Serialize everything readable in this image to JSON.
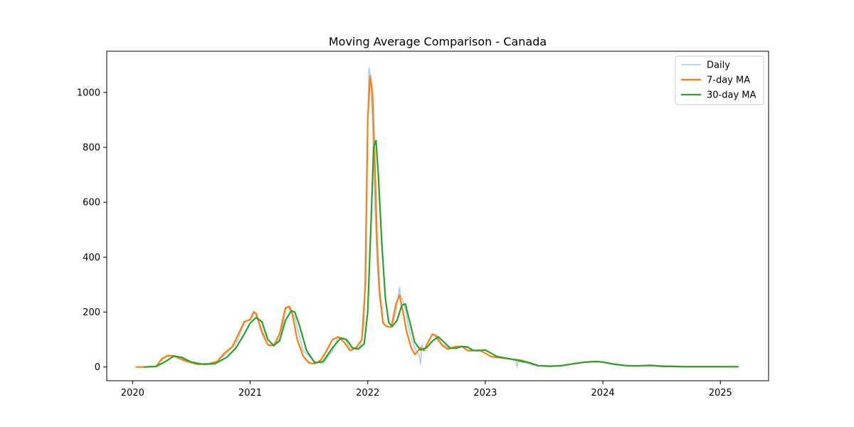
{
  "chart_data": {
    "type": "line",
    "title": "Moving Average Comparison - Canada",
    "xlabel": "",
    "ylabel": "",
    "xlim": [
      2019.78,
      2025.41
    ],
    "ylim": [
      -50,
      1150
    ],
    "x_ticks": [
      2020,
      2021,
      2022,
      2023,
      2024,
      2025
    ],
    "x_tick_labels": [
      "2020",
      "2021",
      "2022",
      "2023",
      "2024",
      "2025"
    ],
    "y_ticks": [
      0,
      200,
      400,
      600,
      800,
      1000
    ],
    "y_tick_labels": [
      "0",
      "200",
      "400",
      "600",
      "800",
      "1000"
    ],
    "grid": false,
    "legend_position": "top-right",
    "series": [
      {
        "name": "Daily",
        "color": "#a6cee3",
        "x": [
          2020.03,
          2020.2,
          2020.27,
          2020.35,
          2020.45,
          2020.55,
          2020.7,
          2020.8,
          2020.88,
          2020.95,
          2021.0,
          2021.03,
          2021.06,
          2021.1,
          2021.15,
          2021.2,
          2021.26,
          2021.3,
          2021.34,
          2021.38,
          2021.45,
          2021.55,
          2021.62,
          2021.7,
          2021.75,
          2021.8,
          2021.85,
          2021.9,
          2021.94,
          2021.97,
          2021.99,
          2022.01,
          2022.02,
          2022.04,
          2022.06,
          2022.08,
          2022.1,
          2022.13,
          2022.16,
          2022.2,
          2022.24,
          2022.27,
          2022.28,
          2022.3,
          2022.32,
          2022.36,
          2022.4,
          2022.44,
          2022.45,
          2022.46,
          2022.48,
          2022.52,
          2022.56,
          2022.6,
          2022.65,
          2022.7,
          2022.78,
          2022.85,
          2022.9,
          2022.95,
          2023.0,
          2023.05,
          2023.1,
          2023.2,
          2023.26,
          2023.27,
          2023.28,
          2023.35,
          2023.4,
          2023.45,
          2023.55,
          2023.65,
          2023.75,
          2023.85,
          2023.95,
          2024.0,
          2024.1,
          2024.2,
          2024.3,
          2024.4,
          2024.5,
          2024.6,
          2024.7,
          2024.8,
          2024.9,
          2025.0,
          2025.1,
          2025.15
        ],
        "y": [
          0,
          2,
          35,
          42,
          25,
          10,
          15,
          50,
          85,
          160,
          175,
          205,
          180,
          120,
          80,
          78,
          110,
          210,
          220,
          180,
          60,
          20,
          12,
          60,
          110,
          105,
          70,
          65,
          80,
          160,
          700,
          1090,
          1070,
          900,
          600,
          380,
          250,
          160,
          150,
          145,
          200,
          290,
          260,
          240,
          210,
          120,
          70,
          40,
          10,
          80,
          60,
          100,
          120,
          95,
          80,
          65,
          75,
          75,
          60,
          60,
          62,
          50,
          38,
          30,
          25,
          0,
          20,
          15,
          8,
          3,
          3,
          6,
          12,
          18,
          20,
          18,
          12,
          6,
          4,
          3,
          5,
          2,
          1,
          1,
          1,
          1,
          1,
          1
        ]
      },
      {
        "name": "7-day MA",
        "color": "#ff7f0e",
        "x": [
          2020.03,
          2020.1,
          2020.2,
          2020.25,
          2020.3,
          2020.35,
          2020.45,
          2020.55,
          2020.65,
          2020.72,
          2020.78,
          2020.85,
          2020.9,
          2020.95,
          2021.0,
          2021.03,
          2021.05,
          2021.1,
          2021.15,
          2021.2,
          2021.25,
          2021.3,
          2021.33,
          2021.36,
          2021.4,
          2021.45,
          2021.5,
          2021.55,
          2021.6,
          2021.65,
          2021.7,
          2021.75,
          2021.8,
          2021.85,
          2021.9,
          2021.95,
          2021.98,
          2022.0,
          2022.02,
          2022.04,
          2022.06,
          2022.08,
          2022.1,
          2022.13,
          2022.16,
          2022.2,
          2022.24,
          2022.27,
          2022.3,
          2022.33,
          2022.37,
          2022.4,
          2022.45,
          2022.48,
          2022.5,
          2022.52,
          2022.55,
          2022.58,
          2022.6,
          2022.63,
          2022.68,
          2022.75,
          2022.8,
          2022.85,
          2022.9,
          2022.95,
          2023.0,
          2023.05,
          2023.1,
          2023.2,
          2023.3,
          2023.38,
          2023.45,
          2023.55,
          2023.65,
          2023.75,
          2023.85,
          2023.95,
          2024.0,
          2024.1,
          2024.2,
          2024.3,
          2024.4,
          2024.5,
          2024.6,
          2024.7,
          2024.8,
          2024.9,
          2025.0,
          2025.15
        ],
        "y": [
          0,
          0,
          2,
          30,
          42,
          40,
          22,
          10,
          12,
          20,
          50,
          75,
          120,
          165,
          172,
          200,
          195,
          130,
          80,
          78,
          120,
          215,
          220,
          190,
          100,
          40,
          15,
          12,
          25,
          60,
          100,
          110,
          90,
          60,
          70,
          100,
          300,
          900,
          1060,
          1000,
          750,
          450,
          280,
          160,
          148,
          145,
          230,
          262,
          200,
          130,
          70,
          45,
          70,
          60,
          80,
          95,
          120,
          115,
          100,
          80,
          65,
          75,
          75,
          60,
          60,
          62,
          50,
          38,
          35,
          30,
          25,
          15,
          5,
          3,
          5,
          12,
          18,
          20,
          18,
          10,
          5,
          4,
          6,
          3,
          2,
          1,
          1,
          1,
          1,
          1
        ]
      },
      {
        "name": "30-day MA",
        "color": "#2ca02c",
        "x": [
          2020.1,
          2020.2,
          2020.28,
          2020.35,
          2020.42,
          2020.5,
          2020.6,
          2020.7,
          2020.8,
          2020.88,
          2020.95,
          2021.0,
          2021.05,
          2021.1,
          2021.15,
          2021.2,
          2021.25,
          2021.3,
          2021.35,
          2021.38,
          2021.42,
          2021.48,
          2021.55,
          2021.62,
          2021.7,
          2021.77,
          2021.82,
          2021.87,
          2021.92,
          2021.97,
          2022.0,
          2022.03,
          2022.05,
          2022.07,
          2022.09,
          2022.12,
          2022.15,
          2022.18,
          2022.21,
          2022.25,
          2022.29,
          2022.32,
          2022.36,
          2022.4,
          2022.45,
          2022.5,
          2022.55,
          2022.6,
          2022.65,
          2022.7,
          2022.75,
          2022.8,
          2022.85,
          2022.9,
          2022.95,
          2023.0,
          2023.05,
          2023.1,
          2023.2,
          2023.3,
          2023.38,
          2023.45,
          2023.55,
          2023.65,
          2023.75,
          2023.85,
          2023.95,
          2024.0,
          2024.1,
          2024.2,
          2024.3,
          2024.4,
          2024.5,
          2024.6,
          2024.7,
          2024.8,
          2024.9,
          2025.0,
          2025.15
        ],
        "y": [
          0,
          2,
          20,
          40,
          35,
          18,
          10,
          12,
          35,
          70,
          120,
          160,
          180,
          165,
          100,
          78,
          95,
          170,
          205,
          200,
          150,
          60,
          15,
          20,
          70,
          105,
          100,
          70,
          65,
          85,
          200,
          550,
          800,
          825,
          700,
          450,
          250,
          160,
          148,
          170,
          225,
          230,
          160,
          90,
          62,
          70,
          95,
          110,
          90,
          70,
          68,
          75,
          72,
          60,
          60,
          62,
          50,
          38,
          30,
          22,
          15,
          5,
          3,
          5,
          12,
          18,
          20,
          18,
          10,
          5,
          4,
          6,
          3,
          2,
          1,
          1,
          1,
          1,
          1
        ]
      }
    ]
  }
}
